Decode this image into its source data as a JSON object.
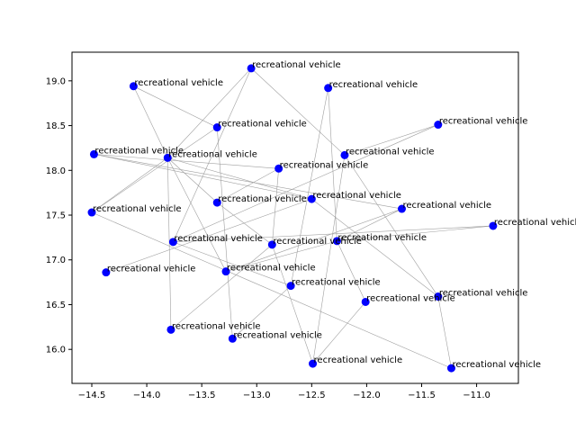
{
  "chart_data": {
    "type": "scatter",
    "title": "",
    "xlabel": "",
    "ylabel": "",
    "xlim": [
      -14.68,
      -10.62
    ],
    "ylim": [
      15.62,
      19.32
    ],
    "xticks": [
      -14.5,
      -14.0,
      -13.5,
      -13.0,
      -12.5,
      -12.0,
      -11.5,
      -11.0
    ],
    "xtick_labels": [
      "−14.5",
      "−14.0",
      "−13.5",
      "−13.0",
      "−12.5",
      "−12.0",
      "−11.5",
      "−11.0"
    ],
    "yticks": [
      16.0,
      16.5,
      17.0,
      17.5,
      18.0,
      18.5,
      19.0
    ],
    "ytick_labels": [
      "16.0",
      "16.5",
      "17.0",
      "17.5",
      "18.0",
      "18.5",
      "19.0"
    ],
    "grid": false,
    "colors": {
      "marker": "#0000ff",
      "edge": "#a0a0a0",
      "axis": "#000000"
    },
    "points": [
      {
        "label": "recreational vehicle",
        "x": -13.05,
        "y": 19.14
      },
      {
        "label": "recreational vehicle",
        "x": -14.12,
        "y": 18.94
      },
      {
        "label": "recreational vehicle",
        "x": -12.35,
        "y": 18.92
      },
      {
        "label": "recreational vehicle",
        "x": -13.36,
        "y": 18.48
      },
      {
        "label": "recreational vehicle",
        "x": -11.35,
        "y": 18.51
      },
      {
        "label": "recreational vehicle",
        "x": -14.48,
        "y": 18.18
      },
      {
        "label": "recreational vehicle",
        "x": -13.81,
        "y": 18.14
      },
      {
        "label": "recreational vehicle",
        "x": -12.2,
        "y": 18.17
      },
      {
        "label": "recreational vehicle",
        "x": -12.8,
        "y": 18.02
      },
      {
        "label": "recreational vehicle",
        "x": -13.36,
        "y": 17.64
      },
      {
        "label": "recreational vehicle",
        "x": -12.5,
        "y": 17.68
      },
      {
        "label": "recreational vehicle",
        "x": -14.5,
        "y": 17.53
      },
      {
        "label": "recreational vehicle",
        "x": -11.68,
        "y": 17.57
      },
      {
        "label": "recreational vehicle",
        "x": -10.85,
        "y": 17.38
      },
      {
        "label": "recreational vehicle",
        "x": -13.76,
        "y": 17.2
      },
      {
        "label": "recreational vehicle",
        "x": -12.86,
        "y": 17.17
      },
      {
        "label": "recreational vehicle",
        "x": -12.27,
        "y": 17.21
      },
      {
        "label": "recreational vehicle",
        "x": -14.37,
        "y": 16.86
      },
      {
        "label": "recreational vehicle",
        "x": -13.28,
        "y": 16.87
      },
      {
        "label": "recreational vehicle",
        "x": -12.69,
        "y": 16.71
      },
      {
        "label": "recreational vehicle",
        "x": -12.01,
        "y": 16.53
      },
      {
        "label": "recreational vehicle",
        "x": -11.35,
        "y": 16.59
      },
      {
        "label": "recreational vehicle",
        "x": -13.78,
        "y": 16.22
      },
      {
        "label": "recreational vehicle",
        "x": -13.22,
        "y": 16.12
      },
      {
        "label": "recreational vehicle",
        "x": -12.49,
        "y": 15.84
      },
      {
        "label": "recreational vehicle",
        "x": -11.23,
        "y": 15.79
      }
    ],
    "edges": [
      [
        1,
        6
      ],
      [
        6,
        18
      ],
      [
        6,
        22
      ],
      [
        6,
        10
      ],
      [
        6,
        9
      ],
      [
        11,
        6
      ],
      [
        11,
        3
      ],
      [
        0,
        6
      ],
      [
        0,
        7
      ],
      [
        0,
        14
      ],
      [
        2,
        16
      ],
      [
        2,
        19
      ],
      [
        5,
        8
      ],
      [
        5,
        10
      ],
      [
        5,
        12
      ],
      [
        4,
        7
      ],
      [
        4,
        14
      ],
      [
        3,
        23
      ],
      [
        9,
        15
      ],
      [
        9,
        8
      ],
      [
        7,
        24
      ],
      [
        7,
        21
      ],
      [
        16,
        12
      ],
      [
        16,
        20
      ],
      [
        16,
        18
      ],
      [
        14,
        13
      ],
      [
        14,
        19
      ],
      [
        15,
        24
      ],
      [
        17,
        10
      ],
      [
        18,
        12
      ],
      [
        22,
        15
      ],
      [
        19,
        23
      ],
      [
        10,
        21
      ],
      [
        11,
        25
      ],
      [
        21,
        25
      ],
      [
        13,
        16
      ],
      [
        8,
        15
      ],
      [
        20,
        24
      ],
      [
        1,
        3
      ]
    ]
  }
}
